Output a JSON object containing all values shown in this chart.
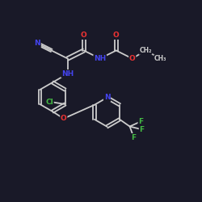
{
  "bg": "#191928",
  "bc": "#cccccc",
  "NC": "#4444ee",
  "OC": "#ee3333",
  "ClC": "#44bb44",
  "FC": "#44bb44",
  "CC": "#cccccc",
  "figsize": [
    2.5,
    2.5
  ],
  "dpi": 100,
  "xlim": [
    0,
    10
  ],
  "ylim": [
    0,
    10
  ],
  "lw": 1.3,
  "fs": 6.5
}
